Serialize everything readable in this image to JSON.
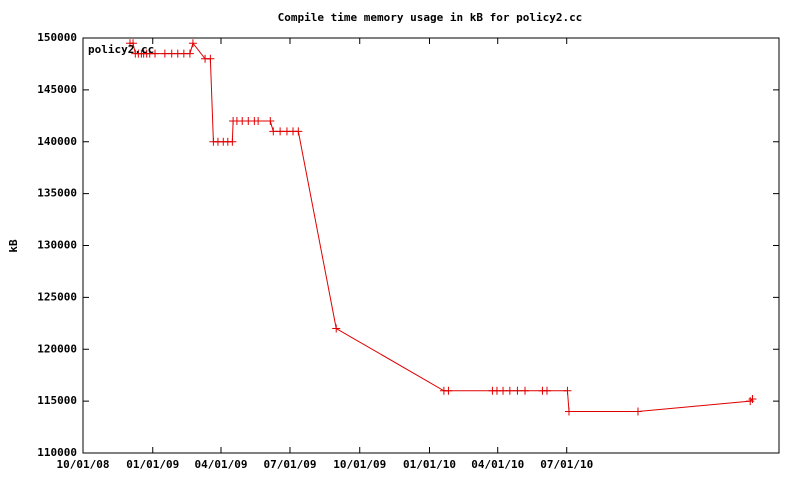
{
  "chart_data": {
    "type": "line",
    "title": "Compile time memory usage in kB for policy2.cc",
    "ylabel": "kB",
    "x": [
      "2008-12-02",
      "2008-12-06",
      "2008-12-09",
      "2008-12-13",
      "2008-12-17",
      "2008-12-20",
      "2008-12-24",
      "2008-12-28",
      "2009-01-04",
      "2009-01-17",
      "2009-01-26",
      "2009-02-03",
      "2009-02-11",
      "2009-02-19",
      "2009-02-23",
      "2009-03-11",
      "2009-03-18",
      "2009-03-22",
      "2009-03-28",
      "2009-04-04",
      "2009-04-10",
      "2009-04-16",
      "2009-04-17",
      "2009-04-22",
      "2009-04-29",
      "2009-05-07",
      "2009-05-15",
      "2009-05-20",
      "2009-06-05",
      "2009-06-09",
      "2009-06-18",
      "2009-06-27",
      "2009-07-05",
      "2009-07-12",
      "2009-08-31",
      "2010-01-20",
      "2010-01-26",
      "2010-03-25",
      "2010-03-31",
      "2010-04-08",
      "2010-04-17",
      "2010-04-27",
      "2010-05-07",
      "2010-05-30",
      "2010-06-05",
      "2010-07-02",
      "2010-07-04",
      "2010-10-03",
      "2011-02-28",
      "2011-03-03"
    ],
    "series": [
      {
        "name": "policy2.cc",
        "color": "#e00000",
        "values": [
          149500,
          149500,
          148500,
          148500,
          148500,
          148500,
          148500,
          148500,
          148500,
          148500,
          148500,
          148500,
          148500,
          148500,
          149500,
          148000,
          148000,
          140000,
          140000,
          140000,
          140000,
          140000,
          142000,
          142000,
          142000,
          142000,
          142000,
          142000,
          142000,
          141000,
          141000,
          141000,
          141000,
          141000,
          122000,
          116000,
          116000,
          116000,
          116000,
          116000,
          116000,
          116000,
          116000,
          116000,
          116000,
          116000,
          114000,
          114000,
          115000,
          115200
        ]
      }
    ],
    "xlim": [
      "2008-10-01",
      "2011-04-07"
    ],
    "xticks": [
      {
        "value": "2008-10-01",
        "label": "10/01/08"
      },
      {
        "value": "2009-01-01",
        "label": "01/01/09"
      },
      {
        "value": "2009-04-01",
        "label": "04/01/09"
      },
      {
        "value": "2009-07-01",
        "label": "07/01/09"
      },
      {
        "value": "2009-10-01",
        "label": "10/01/09"
      },
      {
        "value": "2010-01-01",
        "label": "01/01/10"
      },
      {
        "value": "2010-04-01",
        "label": "04/01/10"
      },
      {
        "value": "2010-07-01",
        "label": "07/01/10"
      }
    ],
    "ylim": [
      110000,
      150000
    ],
    "yticks": [
      110000,
      115000,
      120000,
      125000,
      130000,
      135000,
      140000,
      145000,
      150000
    ],
    "legend": "top-left"
  }
}
